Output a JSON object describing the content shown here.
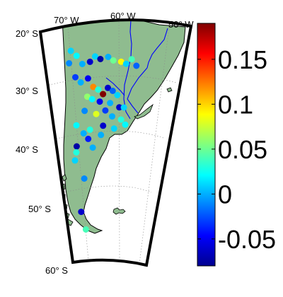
{
  "map": {
    "lon_labels": [
      "70° W",
      "60° W",
      "50° W"
    ],
    "lat_labels": [
      "20° S",
      "30° S",
      "40° S",
      "50° S",
      "60° S"
    ],
    "land_color": "#8fbc8f",
    "sea_color": "#ffffff",
    "coast_color": "#000000",
    "river_color": "#0000ff",
    "grid": "dotted"
  },
  "colorbar": {
    "colormap": "jet",
    "range": [
      -0.08,
      0.19
    ],
    "tick_values": [
      -0.05,
      0,
      0.05,
      0.1,
      0.15
    ],
    "tick_labels": [
      "-0.05",
      "0",
      "0.05",
      "0.1",
      "0.15"
    ]
  },
  "stations": [
    {
      "lon": -68.5,
      "lat": -24.5,
      "value": 0.01
    },
    {
      "lon": -67.5,
      "lat": -25.5,
      "value": 0.02
    },
    {
      "lon": -69.0,
      "lat": -26.5,
      "value": -0.01
    },
    {
      "lon": -66.5,
      "lat": -27.0,
      "value": 0.0
    },
    {
      "lon": -65.0,
      "lat": -26.8,
      "value": -0.06
    },
    {
      "lon": -64.0,
      "lat": -26.0,
      "value": 0.01
    },
    {
      "lon": -63.0,
      "lat": -26.5,
      "value": -0.07
    },
    {
      "lon": -61.5,
      "lat": -26.2,
      "value": 0.0
    },
    {
      "lon": -60.5,
      "lat": -26.8,
      "value": 0.05
    },
    {
      "lon": -59.0,
      "lat": -27.0,
      "value": 0.09
    },
    {
      "lon": -58.0,
      "lat": -27.3,
      "value": 0.01
    },
    {
      "lon": -57.0,
      "lat": -26.5,
      "value": 0.04
    },
    {
      "lon": -56.0,
      "lat": -27.5,
      "value": -0.02
    },
    {
      "lon": -68.0,
      "lat": -29.0,
      "value": -0.03
    },
    {
      "lon": -67.0,
      "lat": -30.0,
      "value": 0.0
    },
    {
      "lon": -65.5,
      "lat": -29.5,
      "value": -0.05
    },
    {
      "lon": -64.5,
      "lat": -31.0,
      "value": 0.12
    },
    {
      "lon": -63.5,
      "lat": -31.5,
      "value": 0.03
    },
    {
      "lon": -62.5,
      "lat": -32.3,
      "value": 0.19
    },
    {
      "lon": -61.5,
      "lat": -31.3,
      "value": -0.06
    },
    {
      "lon": -60.5,
      "lat": -31.8,
      "value": -0.02
    },
    {
      "lon": -59.5,
      "lat": -32.5,
      "value": 0.01
    },
    {
      "lon": -65.8,
      "lat": -32.5,
      "value": 0.06
    },
    {
      "lon": -64.8,
      "lat": -33.0,
      "value": 0.02
    },
    {
      "lon": -63.2,
      "lat": -33.5,
      "value": -0.05
    },
    {
      "lon": -61.0,
      "lat": -33.8,
      "value": 0.0
    },
    {
      "lon": -59.0,
      "lat": -34.5,
      "value": -0.06
    },
    {
      "lon": -58.0,
      "lat": -34.5,
      "value": 0.01
    },
    {
      "lon": -66.5,
      "lat": -34.8,
      "value": -0.01
    },
    {
      "lon": -64.0,
      "lat": -35.5,
      "value": 0.08
    },
    {
      "lon": -62.0,
      "lat": -35.0,
      "value": -0.03
    },
    {
      "lon": -60.5,
      "lat": -36.0,
      "value": 0.0
    },
    {
      "lon": -58.5,
      "lat": -36.5,
      "value": 0.03
    },
    {
      "lon": -57.5,
      "lat": -37.3,
      "value": 0.02
    },
    {
      "lon": -62.5,
      "lat": -37.5,
      "value": -0.06
    },
    {
      "lon": -60.0,
      "lat": -38.0,
      "value": 0.01
    },
    {
      "lon": -68.5,
      "lat": -37.0,
      "value": 0.02
    },
    {
      "lon": -67.0,
      "lat": -38.5,
      "value": 0.0
    },
    {
      "lon": -65.5,
      "lat": -38.0,
      "value": 0.03
    },
    {
      "lon": -63.0,
      "lat": -39.0,
      "value": 0.0
    },
    {
      "lon": -66.0,
      "lat": -39.5,
      "value": -0.04
    },
    {
      "lon": -68.8,
      "lat": -40.5,
      "value": -0.07
    },
    {
      "lon": -69.0,
      "lat": -41.5,
      "value": 0.03
    },
    {
      "lon": -65.0,
      "lat": -41.0,
      "value": 0.0
    },
    {
      "lon": -69.5,
      "lat": -42.8,
      "value": 0.01
    },
    {
      "lon": -67.5,
      "lat": -46.0,
      "value": -0.01
    },
    {
      "lon": -69.0,
      "lat": -51.5,
      "value": -0.06
    },
    {
      "lon": -68.0,
      "lat": -54.5,
      "value": 0.04
    }
  ]
}
